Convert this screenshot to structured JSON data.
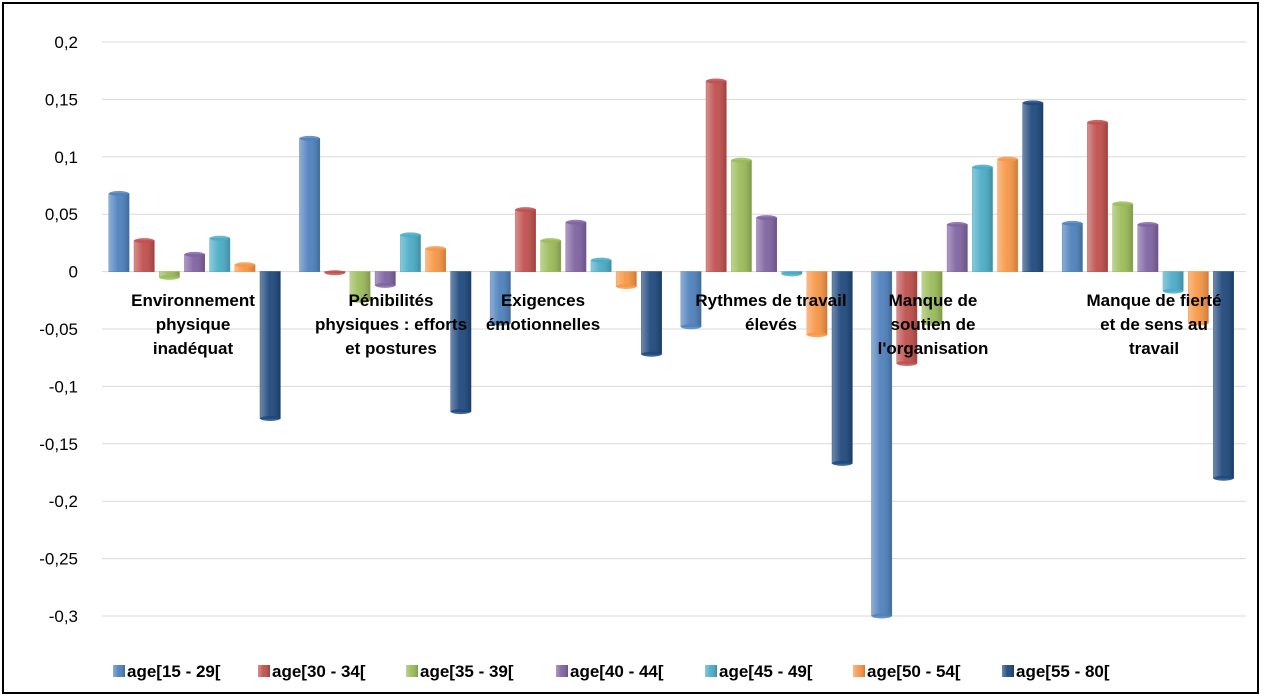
{
  "chart_data": {
    "type": "bar",
    "title": "",
    "xlabel": "",
    "ylabel": "",
    "ylim": [
      -0.3,
      0.2
    ],
    "yticks": [
      "0,2",
      "0,15",
      "0,1",
      "0,05",
      "0",
      "-0,05",
      "-0,1",
      "-0,15",
      "-0,2",
      "-0,25",
      "-0,3"
    ],
    "ytick_values": [
      0.2,
      0.15,
      0.1,
      0.05,
      0,
      -0.05,
      -0.1,
      -0.15,
      -0.2,
      -0.25,
      -0.3
    ],
    "grid": true,
    "legend_position": "bottom",
    "categories": [
      [
        "Environnement",
        "physique",
        "inadéquat"
      ],
      [
        "Pénibilités",
        "physiques : efforts",
        "et postures"
      ],
      [
        "Exigences",
        "émotionnelles"
      ],
      [
        "Rythmes de travail",
        "élevés"
      ],
      [
        "Manque de",
        "soutien de",
        "l'organisation"
      ],
      [
        "Manque de fierté",
        "et de sens au",
        "travail"
      ]
    ],
    "series": [
      {
        "name": "age[15 - 29[",
        "color": "#4F81BD",
        "values": [
          0.068,
          0.116,
          -0.045,
          -0.048,
          -0.3,
          0.042
        ]
      },
      {
        "name": "age[30 - 34[",
        "color": "#C0504D",
        "values": [
          0.027,
          -0.001,
          0.054,
          0.166,
          -0.08,
          0.13
        ]
      },
      {
        "name": "age[35 - 39[",
        "color": "#9BBB59",
        "values": [
          -0.005,
          -0.025,
          0.027,
          0.097,
          -0.045,
          0.059
        ]
      },
      {
        "name": "age[40 - 44[",
        "color": "#8064A2",
        "values": [
          0.015,
          -0.012,
          0.043,
          0.047,
          0.041,
          0.041
        ]
      },
      {
        "name": "age[45 - 49[",
        "color": "#4BACC6",
        "values": [
          0.029,
          0.032,
          0.01,
          -0.002,
          0.091,
          -0.017
        ]
      },
      {
        "name": "age[50 - 54[",
        "color": "#F79646",
        "values": [
          0.006,
          0.02,
          -0.013,
          -0.055,
          0.098,
          -0.045
        ]
      },
      {
        "name": "age[55 - 80[",
        "color": "#1F497D",
        "values": [
          -0.128,
          -0.122,
          -0.072,
          -0.167,
          0.147,
          -0.18
        ]
      }
    ]
  }
}
